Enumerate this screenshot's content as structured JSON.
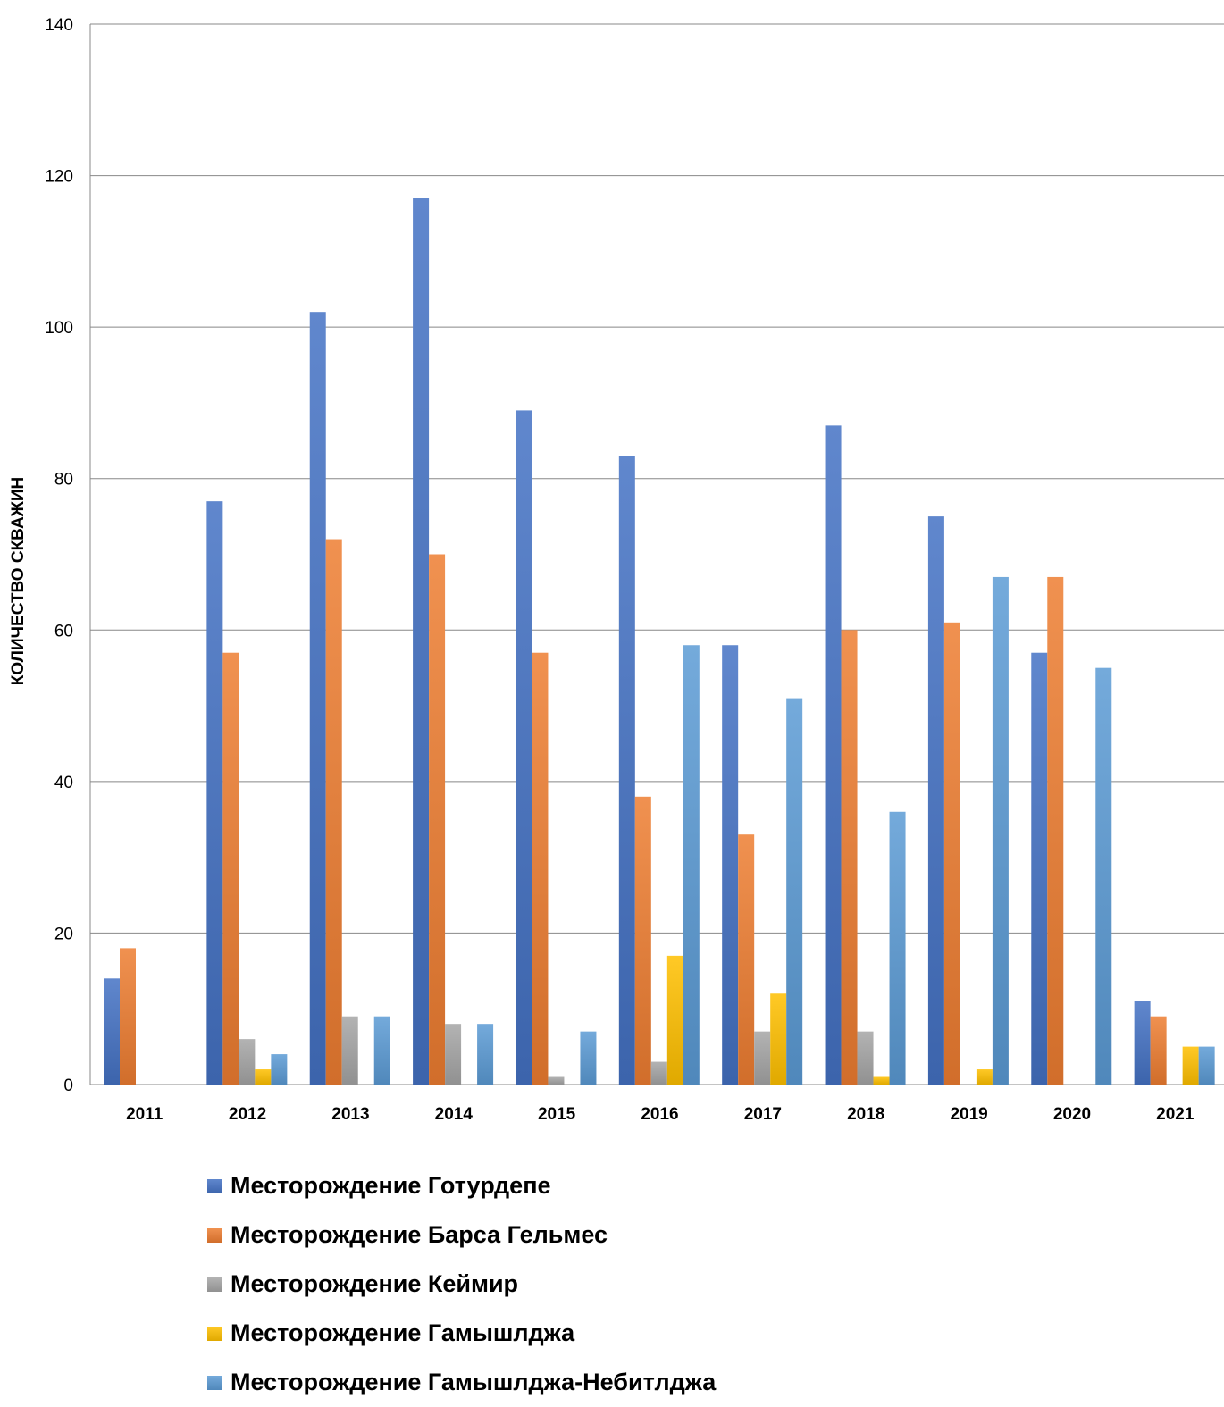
{
  "chart_data": {
    "type": "bar",
    "ylabel": "КОЛИЧЕСТВО СКВАЖИН",
    "ylim": [
      0,
      140
    ],
    "yticks": [
      0,
      20,
      40,
      60,
      80,
      100,
      120,
      140
    ],
    "grid": true,
    "legend_position": "bottom",
    "categories": [
      "2011",
      "2012",
      "2013",
      "2014",
      "2015",
      "2016",
      "2017",
      "2018",
      "2019",
      "2020",
      "2021"
    ],
    "series": [
      {
        "name": "Месторождение Готурдепе",
        "color": "#4472C4",
        "values": [
          14,
          77,
          102,
          117,
          89,
          83,
          58,
          87,
          75,
          57,
          11
        ]
      },
      {
        "name": "Месторождение Барса Гельмес",
        "color": "#ED7D31",
        "values": [
          18,
          57,
          72,
          70,
          57,
          38,
          33,
          60,
          61,
          67,
          9
        ]
      },
      {
        "name": "Месторождение Кеймир",
        "color": "#A5A5A5",
        "values": [
          0,
          6,
          9,
          8,
          1,
          3,
          7,
          7,
          0,
          0,
          0
        ]
      },
      {
        "name": "Месторождение Гамышлджа",
        "color": "#FFC000",
        "values": [
          0,
          2,
          0,
          0,
          0,
          17,
          12,
          1,
          2,
          0,
          5
        ]
      },
      {
        "name": "Месторождение Гамышлджа-Небитлджа",
        "color": "#5B9BD5",
        "values": [
          0,
          4,
          9,
          8,
          7,
          58,
          51,
          36,
          67,
          55,
          5
        ]
      }
    ]
  }
}
